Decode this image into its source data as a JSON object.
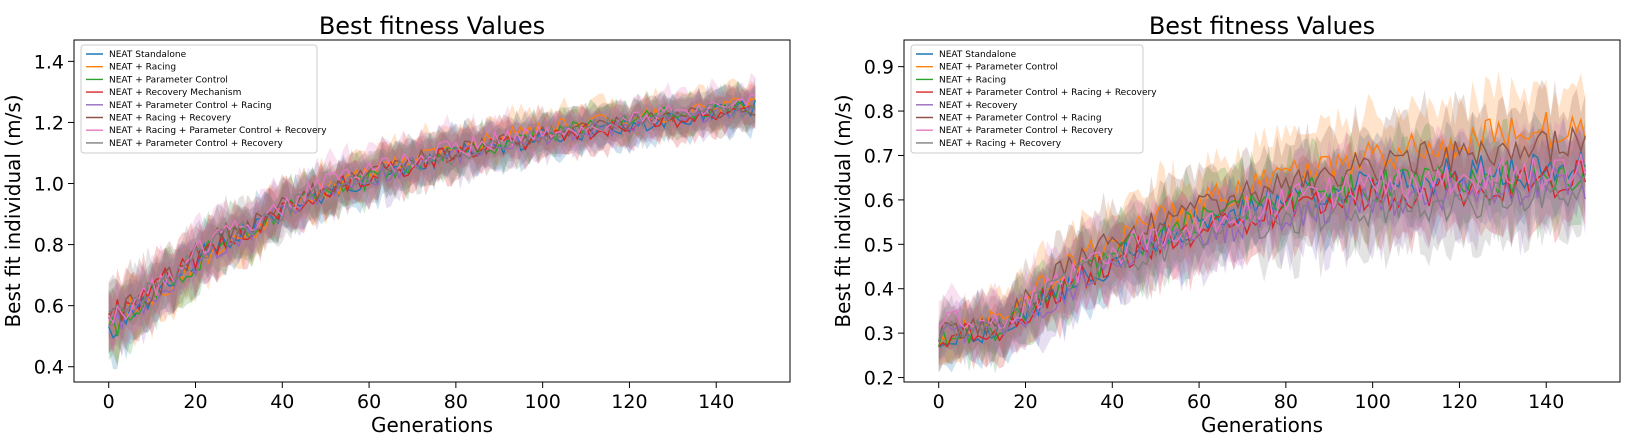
{
  "chart_data": [
    {
      "type": "line",
      "title": "Best fitness Values",
      "xlabel": "Generations",
      "ylabel": "Best fit individual (m/s)",
      "xlim": [
        -8,
        157
      ],
      "ylim": [
        0.35,
        1.47
      ],
      "xticks": [
        0,
        20,
        40,
        60,
        80,
        100,
        120,
        140
      ],
      "yticks": [
        0.4,
        0.6,
        0.8,
        1.0,
        1.2,
        1.4
      ],
      "ytick_labels": [
        "0.4",
        "0.6",
        "0.8",
        "1.0",
        "1.2",
        "1.4"
      ],
      "grid": false,
      "legend_position": "upper-left",
      "shaded_band": "variability around each series mean",
      "series": [
        {
          "name": "NEAT Standalone",
          "color": "#1f77b4",
          "x": [
            0,
            25,
            50,
            75,
            100,
            125,
            149
          ],
          "y": [
            0.52,
            0.8,
            0.97,
            1.08,
            1.15,
            1.2,
            1.25
          ],
          "spread": [
            0.1,
            0.08,
            0.07,
            0.07,
            0.06,
            0.06,
            0.06
          ]
        },
        {
          "name": "NEAT + Racing",
          "color": "#ff7f0e",
          "x": [
            0,
            25,
            50,
            75,
            100,
            125,
            149
          ],
          "y": [
            0.53,
            0.79,
            0.98,
            1.1,
            1.18,
            1.22,
            1.27
          ],
          "spread": [
            0.1,
            0.08,
            0.07,
            0.07,
            0.06,
            0.06,
            0.06
          ]
        },
        {
          "name": "NEAT + Parameter Control",
          "color": "#2ca02c",
          "x": [
            0,
            25,
            50,
            75,
            100,
            125,
            149
          ],
          "y": [
            0.52,
            0.8,
            0.97,
            1.08,
            1.16,
            1.22,
            1.26
          ],
          "spread": [
            0.1,
            0.08,
            0.07,
            0.07,
            0.06,
            0.06,
            0.06
          ]
        },
        {
          "name": "NEAT + Recovery Mechanism",
          "color": "#d62728",
          "x": [
            0,
            25,
            50,
            75,
            100,
            125,
            149
          ],
          "y": [
            0.56,
            0.8,
            0.98,
            1.08,
            1.15,
            1.2,
            1.23
          ],
          "spread": [
            0.1,
            0.08,
            0.07,
            0.07,
            0.06,
            0.06,
            0.06
          ]
        },
        {
          "name": "NEAT + Parameter Control + Racing",
          "color": "#9467bd",
          "x": [
            0,
            25,
            50,
            75,
            100,
            125,
            149
          ],
          "y": [
            0.52,
            0.79,
            0.97,
            1.08,
            1.15,
            1.2,
            1.24
          ],
          "spread": [
            0.1,
            0.08,
            0.07,
            0.07,
            0.06,
            0.06,
            0.06
          ]
        },
        {
          "name": "NEAT + Racing + Recovery",
          "color": "#8c564b",
          "x": [
            0,
            25,
            50,
            75,
            100,
            125,
            149
          ],
          "y": [
            0.54,
            0.82,
            0.99,
            1.09,
            1.16,
            1.21,
            1.24
          ],
          "spread": [
            0.1,
            0.08,
            0.07,
            0.07,
            0.06,
            0.06,
            0.06
          ]
        },
        {
          "name": "NEAT + Racing + Parameter Control + Recovery",
          "color": "#e377c2",
          "x": [
            0,
            25,
            50,
            75,
            100,
            125,
            149
          ],
          "y": [
            0.55,
            0.82,
            1.0,
            1.1,
            1.17,
            1.22,
            1.27
          ],
          "spread": [
            0.1,
            0.08,
            0.07,
            0.07,
            0.06,
            0.06,
            0.06
          ]
        },
        {
          "name": "NEAT + Parameter Control + Recovery",
          "color": "#7f7f7f",
          "x": [
            0,
            25,
            50,
            75,
            100,
            125,
            149
          ],
          "y": [
            0.56,
            0.81,
            0.98,
            1.08,
            1.16,
            1.21,
            1.25
          ],
          "spread": [
            0.1,
            0.08,
            0.07,
            0.07,
            0.06,
            0.06,
            0.06
          ]
        }
      ]
    },
    {
      "type": "line",
      "title": "Best fitness Values",
      "xlabel": "Generations",
      "ylabel": "Best fit individual (m/s)",
      "xlim": [
        -8,
        157
      ],
      "ylim": [
        0.19,
        0.96
      ],
      "xticks": [
        0,
        20,
        40,
        60,
        80,
        100,
        120,
        140
      ],
      "yticks": [
        0.2,
        0.3,
        0.4,
        0.5,
        0.6,
        0.7,
        0.8,
        0.9
      ],
      "ytick_labels": [
        "0.2",
        "0.3",
        "0.4",
        "0.5",
        "0.6",
        "0.7",
        "0.8",
        "0.9"
      ],
      "grid": false,
      "legend_position": "upper-left",
      "shaded_band": "variability around each series mean",
      "series": [
        {
          "name": "NEAT Standalone",
          "color": "#1f77b4",
          "x": [
            0,
            15,
            30,
            50,
            75,
            100,
            125,
            149
          ],
          "y": [
            0.29,
            0.31,
            0.41,
            0.51,
            0.6,
            0.64,
            0.66,
            0.67
          ],
          "spread": [
            0.05,
            0.06,
            0.07,
            0.08,
            0.08,
            0.09,
            0.09,
            0.09
          ]
        },
        {
          "name": "NEAT + Parameter Control",
          "color": "#ff7f0e",
          "x": [
            0,
            15,
            30,
            50,
            75,
            100,
            125,
            149
          ],
          "y": [
            0.29,
            0.34,
            0.45,
            0.55,
            0.64,
            0.7,
            0.74,
            0.77
          ],
          "spread": [
            0.05,
            0.06,
            0.07,
            0.08,
            0.08,
            0.09,
            0.09,
            0.09
          ]
        },
        {
          "name": "NEAT + Racing",
          "color": "#2ca02c",
          "x": [
            0,
            15,
            30,
            50,
            75,
            100,
            125,
            149
          ],
          "y": [
            0.29,
            0.31,
            0.42,
            0.52,
            0.6,
            0.63,
            0.65,
            0.66
          ],
          "spread": [
            0.05,
            0.06,
            0.07,
            0.08,
            0.08,
            0.09,
            0.09,
            0.09
          ]
        },
        {
          "name": "NEAT + Parameter Control + Racing + Recovery",
          "color": "#d62728",
          "x": [
            0,
            15,
            30,
            50,
            75,
            100,
            125,
            149
          ],
          "y": [
            0.29,
            0.31,
            0.41,
            0.5,
            0.57,
            0.61,
            0.63,
            0.65
          ],
          "spread": [
            0.05,
            0.06,
            0.07,
            0.08,
            0.08,
            0.09,
            0.09,
            0.09
          ]
        },
        {
          "name": "NEAT + Recovery",
          "color": "#9467bd",
          "x": [
            0,
            15,
            30,
            50,
            75,
            100,
            125,
            149
          ],
          "y": [
            0.3,
            0.31,
            0.4,
            0.49,
            0.56,
            0.6,
            0.62,
            0.64
          ],
          "spread": [
            0.05,
            0.06,
            0.07,
            0.08,
            0.08,
            0.09,
            0.09,
            0.09
          ]
        },
        {
          "name": "NEAT + Parameter Control + Racing",
          "color": "#8c564b",
          "x": [
            0,
            15,
            30,
            50,
            75,
            100,
            125,
            149
          ],
          "y": [
            0.3,
            0.33,
            0.45,
            0.55,
            0.62,
            0.68,
            0.71,
            0.73
          ],
          "spread": [
            0.05,
            0.06,
            0.07,
            0.08,
            0.08,
            0.09,
            0.09,
            0.09
          ]
        },
        {
          "name": "NEAT + Parameter Control + Recovery",
          "color": "#e377c2",
          "x": [
            0,
            15,
            30,
            50,
            75,
            100,
            125,
            149
          ],
          "y": [
            0.33,
            0.33,
            0.43,
            0.52,
            0.59,
            0.63,
            0.65,
            0.67
          ],
          "spread": [
            0.05,
            0.06,
            0.07,
            0.08,
            0.08,
            0.09,
            0.09,
            0.09
          ]
        },
        {
          "name": "NEAT + Racing + Recovery",
          "color": "#7f7f7f",
          "x": [
            0,
            15,
            30,
            50,
            75,
            100,
            125,
            149
          ],
          "y": [
            0.3,
            0.32,
            0.42,
            0.49,
            0.55,
            0.58,
            0.6,
            0.62
          ],
          "spread": [
            0.05,
            0.06,
            0.07,
            0.08,
            0.08,
            0.09,
            0.09,
            0.09
          ]
        }
      ]
    }
  ]
}
